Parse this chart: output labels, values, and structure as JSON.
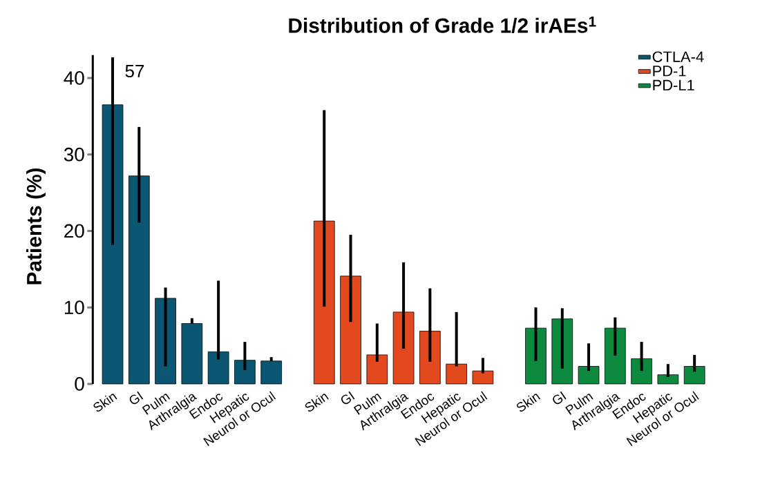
{
  "chart_data": {
    "type": "bar",
    "title": "Distribution of Grade 1/2 irAEs$^{1}$",
    "ylabel": "Patients (%)",
    "categories": [
      "Skin",
      "GI",
      "Pulm",
      "Arthralgia",
      "Endoc",
      "Hepatic",
      "Neurol or Ocul",
      null,
      "Skin",
      "GI",
      "Pulm",
      "Arthralgia",
      "Endoc",
      "Hepatic",
      "Neurol or Ocul",
      null,
      "Skin",
      "GI",
      "Pulm",
      "Arthralgia",
      "Endoc",
      "Hepatic",
      "Neurol or Ocul"
    ],
    "series": [
      {
        "name": "CTLA-4",
        "color": "#0b5773",
        "values": [
          36.5,
          27.2,
          11.2,
          7.9,
          4.2,
          3.1,
          3.0,
          null,
          null,
          null,
          null,
          null,
          null,
          null,
          null,
          null,
          null,
          null,
          null,
          null,
          null,
          null,
          null
        ],
        "errors": [
          [
            18.2,
            42.7
          ],
          [
            21.1,
            33.6
          ],
          [
            2.3,
            12.6
          ],
          [
            7.9,
            8.6
          ],
          [
            3.2,
            13.5
          ],
          [
            1.8,
            5.5
          ],
          [
            3.0,
            3.5
          ],
          null,
          null,
          null,
          null,
          null,
          null,
          null,
          null,
          null,
          null,
          null,
          null,
          null,
          null,
          null,
          null
        ]
      },
      {
        "name": "PD-1",
        "color": "#e2491f",
        "values": [
          null,
          null,
          null,
          null,
          null,
          null,
          null,
          null,
          21.3,
          14.1,
          3.8,
          9.4,
          6.9,
          2.6,
          1.7,
          null,
          null,
          null,
          null,
          null,
          null,
          null,
          null
        ],
        "errors": [
          null,
          null,
          null,
          null,
          null,
          null,
          null,
          null,
          [
            10.1,
            35.8
          ],
          [
            8.1,
            19.5
          ],
          [
            2.9,
            7.9
          ],
          [
            4.6,
            15.9
          ],
          [
            2.9,
            12.5
          ],
          [
            2.3,
            9.4
          ],
          [
            1.4,
            3.4
          ],
          null,
          null,
          null,
          null,
          null,
          null,
          null,
          null
        ]
      },
      {
        "name": "PD-L1",
        "color": "#0d8a3f",
        "values": [
          null,
          null,
          null,
          null,
          null,
          null,
          null,
          null,
          null,
          null,
          null,
          null,
          null,
          null,
          null,
          null,
          7.3,
          8.5,
          2.3,
          7.3,
          3.3,
          1.2,
          2.3
        ],
        "errors": [
          null,
          null,
          null,
          null,
          null,
          null,
          null,
          null,
          null,
          null,
          null,
          null,
          null,
          null,
          null,
          null,
          [
            3.0,
            10.0
          ],
          [
            2.0,
            9.9
          ],
          [
            1.7,
            5.3
          ],
          [
            3.7,
            8.7
          ],
          [
            1.7,
            5.5
          ],
          [
            0.9,
            2.6
          ],
          [
            1.6,
            3.8
          ]
        ]
      }
    ],
    "ylim": [
      0,
      43
    ],
    "yticks": [
      0,
      10,
      20,
      30,
      40
    ],
    "grid": false,
    "legend": "top right",
    "annotations": [
      {
        "text": "57",
        "x": "Skin",
        "y": 42.7
      }
    ]
  }
}
